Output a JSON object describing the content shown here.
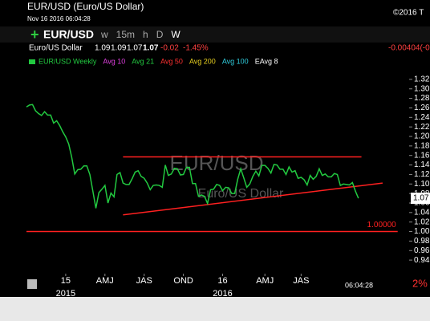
{
  "header": {
    "title": "EUR/USD (Euro/US Dollar)",
    "timestamp": "Nov 16 2016 06:04:28",
    "copyright": "©2016 T"
  },
  "toolbar": {
    "symbol": "EUR/USD",
    "intervals": [
      "w",
      "15m",
      "h",
      "D",
      "W"
    ]
  },
  "quote": {
    "name": "Euro/US Dollar",
    "open": "1.09",
    "high": "1.09",
    "low": "1.07",
    "last": "1.07",
    "change": "-0.02",
    "change_pct": "-1.45%",
    "net": "-0.00404(-0."
  },
  "chart_data": {
    "type": "line",
    "title": "EUR/USD",
    "subtitle": "Euro/US Dollar",
    "time_label": "06:04:28",
    "zoom": "2%",
    "series": [
      {
        "name": "EUR/USD Weekly",
        "color": "#22c940",
        "values": [
          1.262,
          1.266,
          1.267,
          1.254,
          1.248,
          1.244,
          1.252,
          1.245,
          1.245,
          1.228,
          1.233,
          1.223,
          1.21,
          1.199,
          1.184,
          1.156,
          1.121,
          1.13,
          1.131,
          1.138,
          1.138,
          1.12,
          1.085,
          1.049,
          1.082,
          1.089,
          1.097,
          1.06,
          1.081,
          1.073,
          1.12,
          1.124,
          1.102,
          1.099,
          1.099,
          1.111,
          1.125,
          1.128,
          1.116,
          1.112,
          1.102,
          1.088,
          1.097,
          1.098,
          1.097,
          1.093,
          1.14,
          1.118,
          1.121,
          1.133,
          1.132,
          1.119,
          1.12,
          1.135,
          1.135,
          1.101,
          1.101,
          1.074,
          1.077,
          1.074,
          1.059,
          1.088,
          1.089,
          1.099,
          1.097,
          1.086,
          1.093,
          1.092,
          1.08,
          1.08,
          1.11,
          1.132,
          1.113,
          1.093,
          1.1,
          1.116,
          1.127,
          1.117,
          1.139,
          1.139,
          1.133,
          1.123,
          1.141,
          1.14,
          1.131,
          1.131,
          1.12,
          1.136,
          1.125,
          1.128,
          1.112,
          1.114,
          1.109,
          1.098,
          1.118,
          1.11,
          1.116,
          1.132,
          1.118,
          1.121,
          1.115,
          1.115,
          1.122,
          1.12,
          1.097,
          1.1,
          1.099,
          1.098,
          1.103,
          1.085,
          1.07
        ]
      }
    ],
    "indicators": [
      {
        "name": "Avg 10",
        "color": "#e040e0"
      },
      {
        "name": "Avg 21",
        "color": "#22c940"
      },
      {
        "name": "Avg 50",
        "color": "#ff3030"
      },
      {
        "name": "Avg 200",
        "color": "#e8d020"
      },
      {
        "name": "Avg 100",
        "color": "#30d0e0"
      },
      {
        "name": "EAvg 8",
        "color": "#ffffff"
      }
    ],
    "lines": [
      {
        "color": "#ff2020",
        "x": [
          32,
          111
        ],
        "values": [
          1.157,
          1.157
        ]
      },
      {
        "color": "#ff2020",
        "x": [
          32,
          118
        ],
        "values": [
          1.035,
          1.102
        ]
      },
      {
        "color": "#ff2020",
        "x": [
          0,
          123
        ],
        "values": [
          1,
          1
        ],
        "label": "1.00000"
      }
    ],
    "xlim": [
      0,
      126
    ],
    "ylim": [
      0.925,
      1.335
    ],
    "xticks": [
      {
        "value": 13,
        "label": "15"
      },
      {
        "value": 26,
        "label": "AMJ"
      },
      {
        "value": 39,
        "label": "JAS"
      },
      {
        "value": 52,
        "label": "OND"
      },
      {
        "value": 65,
        "label": "16"
      },
      {
        "value": 79,
        "label": "AMJ"
      },
      {
        "value": 91,
        "label": "JAS"
      }
    ],
    "xtick_years": [
      {
        "value": 13,
        "label": "2015"
      },
      {
        "value": 65,
        "label": "2016"
      }
    ],
    "yticks": [
      {
        "value": 0.94,
        "label": "0.94"
      },
      {
        "value": 0.96,
        "label": "0.96"
      },
      {
        "value": 0.98,
        "label": "0.98"
      },
      {
        "value": 1.0,
        "label": "1.00"
      },
      {
        "value": 1.02,
        "label": "1.02"
      },
      {
        "value": 1.04,
        "label": "1.04"
      },
      {
        "value": 1.06,
        "label": "1.06"
      },
      {
        "value": 1.08,
        "label": "1.08"
      },
      {
        "value": 1.1,
        "label": "1.10"
      },
      {
        "value": 1.12,
        "label": "1.12"
      },
      {
        "value": 1.14,
        "label": "1.14"
      },
      {
        "value": 1.16,
        "label": "1.16"
      },
      {
        "value": 1.18,
        "label": "1.18"
      },
      {
        "value": 1.2,
        "label": "1.20"
      },
      {
        "value": 1.22,
        "label": "1.22"
      },
      {
        "value": 1.24,
        "label": "1.24"
      },
      {
        "value": 1.26,
        "label": "1.26"
      },
      {
        "value": 1.28,
        "label": "1.28"
      },
      {
        "value": 1.3,
        "label": "1.30"
      },
      {
        "value": 1.32,
        "label": "1.32"
      }
    ]
  }
}
